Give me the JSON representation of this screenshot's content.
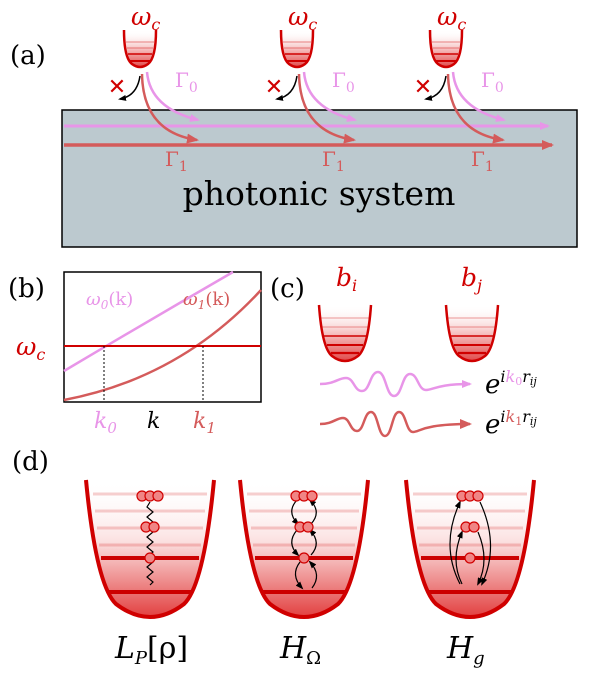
{
  "panels": {
    "a": "(a)",
    "b": "(b)",
    "c": "(c)",
    "d": "(d)"
  },
  "a": {
    "omega": "ω",
    "omega_sub": "c",
    "gamma0": "Γ",
    "gamma0_sub": "0",
    "gamma1": "Γ",
    "gamma1_sub": "1",
    "blocked_mark": "✕",
    "system_label": "photonic system"
  },
  "b": {
    "omega0": "ω",
    "omega0_sub": "0",
    "omega0_arg": "(k)",
    "omega1": "ω",
    "omega1_sub": "1",
    "omega1_arg": "(k)",
    "omega_c": "ω",
    "omega_c_sub": "c",
    "k0": "k",
    "k0_sub": "0",
    "k": "k",
    "k1": "k",
    "k1_sub": "1"
  },
  "c": {
    "bi": "b",
    "bi_sub": "i",
    "bj": "b",
    "bj_sub": "j",
    "exp_base": "e",
    "exp_i": "i",
    "exp_k": "k",
    "exp0_sub": "0",
    "exp1_sub": "1",
    "exp_r": "r",
    "exp_rsub": "ij"
  },
  "d": {
    "lp": "L",
    "lp_sub": "P",
    "lp_arg": "[ρ]",
    "hom": "H",
    "hom_sub": "Ω",
    "hg": "H",
    "hg_sub": "g"
  },
  "colors": {
    "red": "#d00000",
    "pink": "#e895e8",
    "rose": "#d45b5b",
    "box_fill": "#bcc9cf"
  }
}
